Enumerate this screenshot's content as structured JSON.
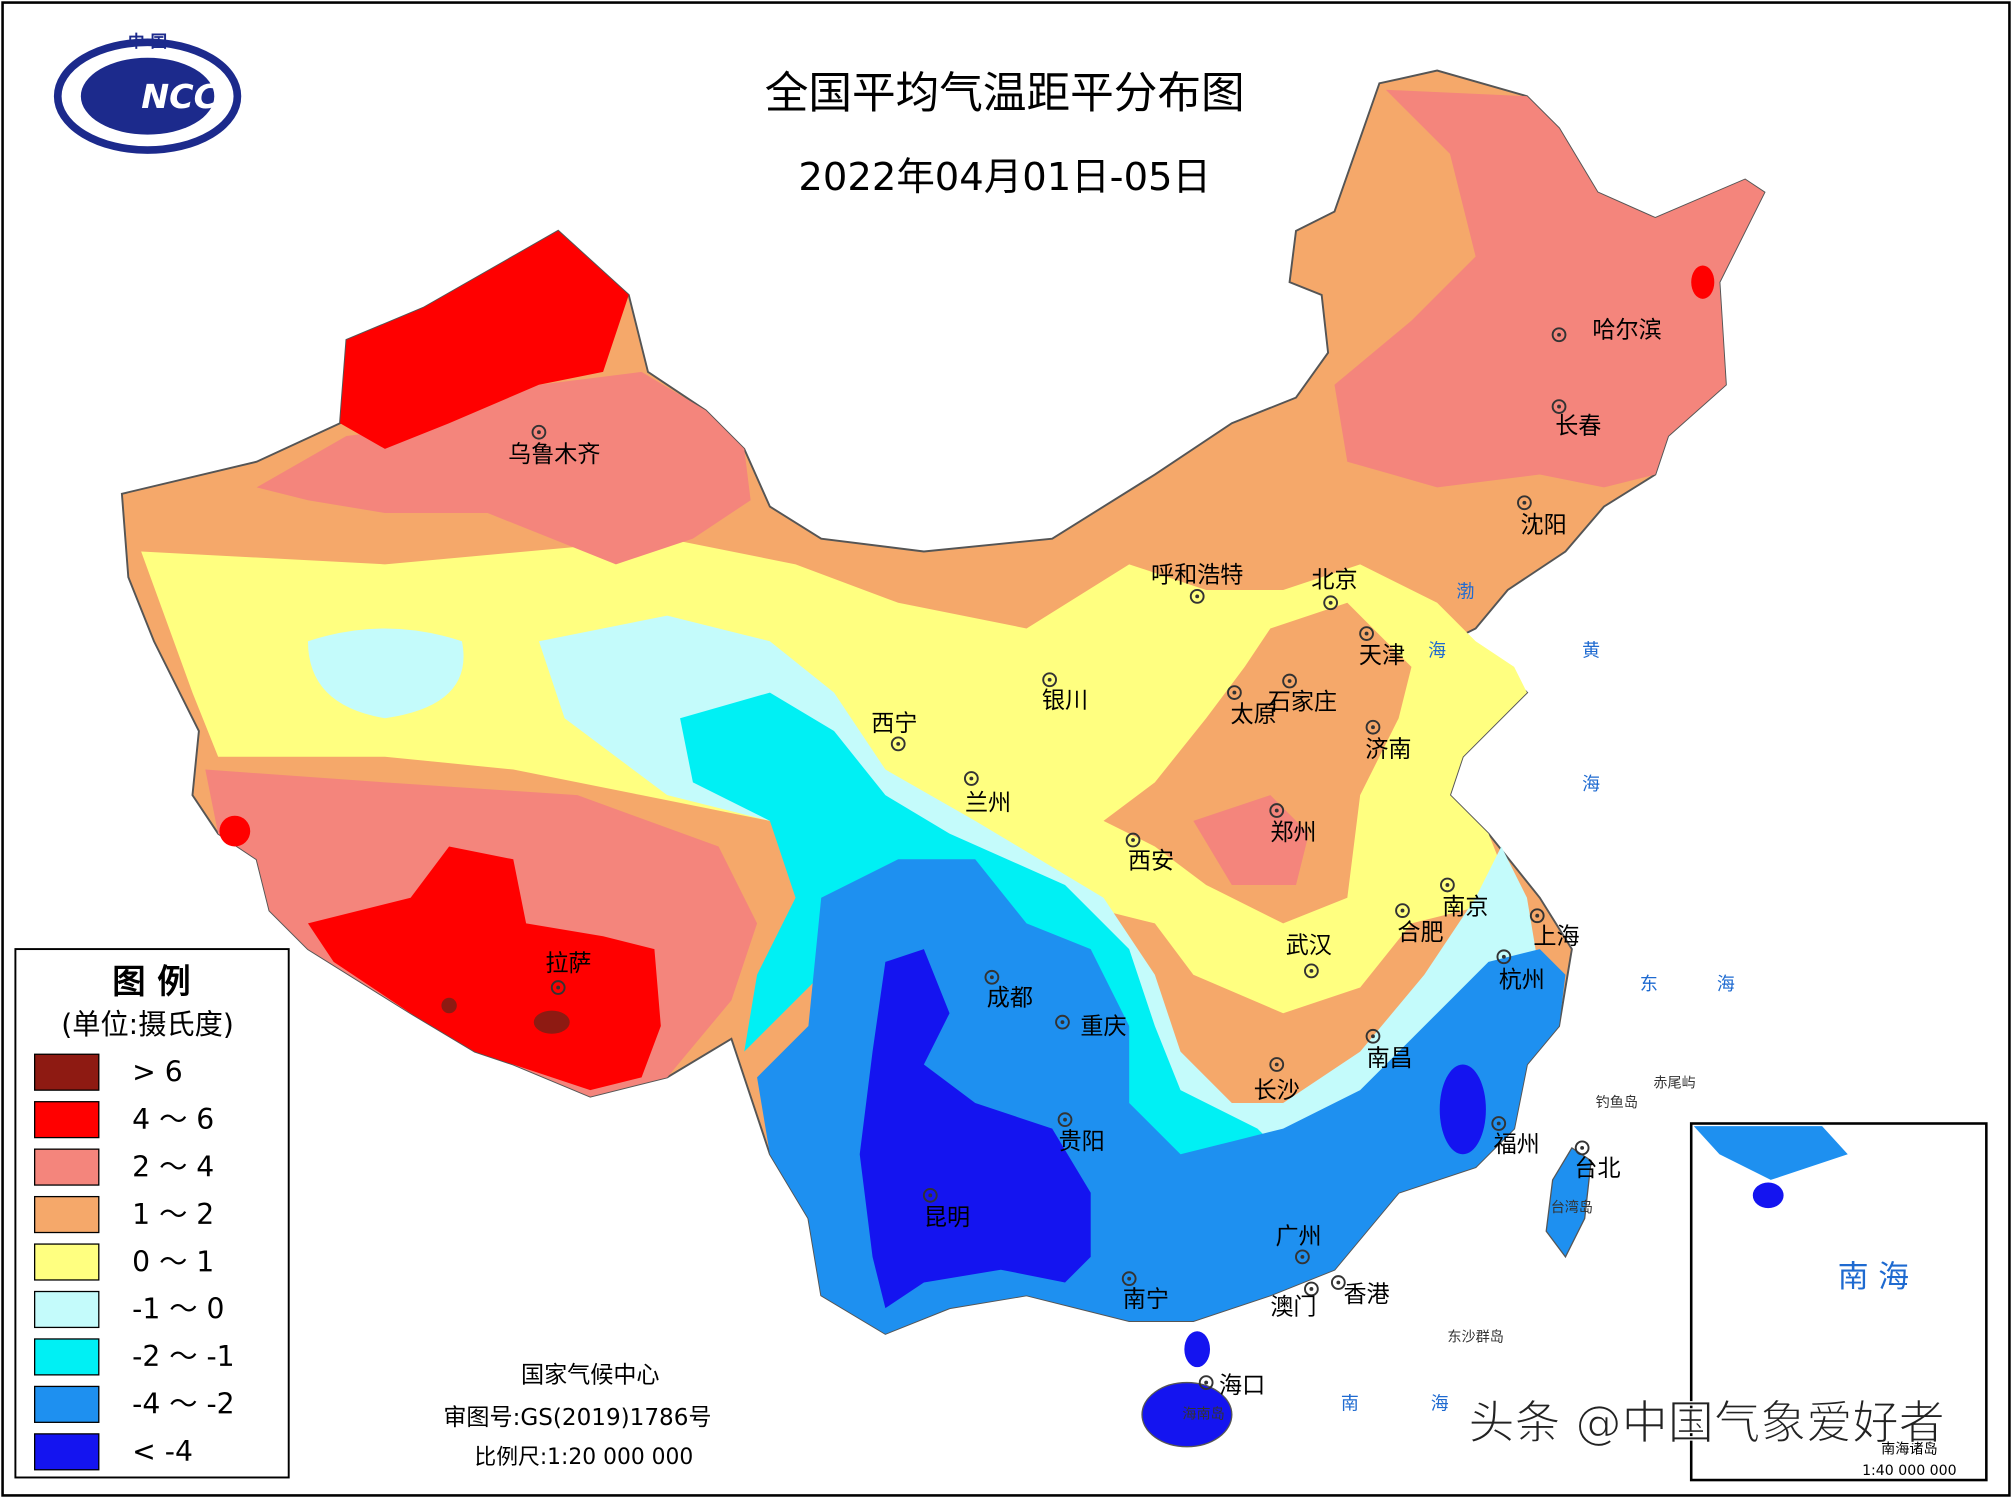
{
  "header": {
    "title": "全国平均气温距平分布图",
    "subtitle": "2022年04月01日-05日",
    "logo_top": "中 国",
    "logo_text": "NCC"
  },
  "legend": {
    "title": "图 例",
    "unit": "(单位:摄氏度)",
    "items": [
      {
        "label": "> 6",
        "color": "#8e1a12"
      },
      {
        "label": "4 ～ 6",
        "color": "#ff0000"
      },
      {
        "label": "2 ～ 4",
        "color": "#f4857c"
      },
      {
        "label": "1 ～ 2",
        "color": "#f5a86a"
      },
      {
        "label": "0 ～ 1",
        "color": "#ffff80"
      },
      {
        "label": "-1 ～ 0",
        "color": "#c4fbfb"
      },
      {
        "label": "-2 ～ -1",
        "color": "#00f0f4"
      },
      {
        "label": "-4 ～ -2",
        "color": "#1e90f0"
      },
      {
        "label": "< -4",
        "color": "#1414f0"
      }
    ]
  },
  "cities": [
    "乌鲁木齐",
    "拉萨",
    "西宁",
    "兰州",
    "银川",
    "呼和浩特",
    "北京",
    "天津",
    "石家庄",
    "太原",
    "济南",
    "郑州",
    "西安",
    "成都",
    "重庆",
    "贵阳",
    "昆明",
    "南宁",
    "广州",
    "香港",
    "澳门",
    "海口",
    "长沙",
    "武汉",
    "南昌",
    "合肥",
    "南京",
    "上海",
    "杭州",
    "福州",
    "台北",
    "哈尔滨",
    "长春",
    "沈阳"
  ],
  "seas": [
    "渤",
    "海",
    "黄",
    "海",
    "东",
    "海",
    "南",
    "海"
  ],
  "places": [
    "钓鱼岛",
    "赤尾屿",
    "台湾岛",
    "东沙群岛",
    "海南岛"
  ],
  "footer": {
    "org": "国家气候中心",
    "approval": "审图号:GS(2019)1786号",
    "scale": "比例尺:1:20 000 000"
  },
  "inset": {
    "label": "南 海",
    "name": "南海诸岛",
    "scale": "1:40 000 000"
  },
  "watermark": "头条 @中国气象爱好者"
}
